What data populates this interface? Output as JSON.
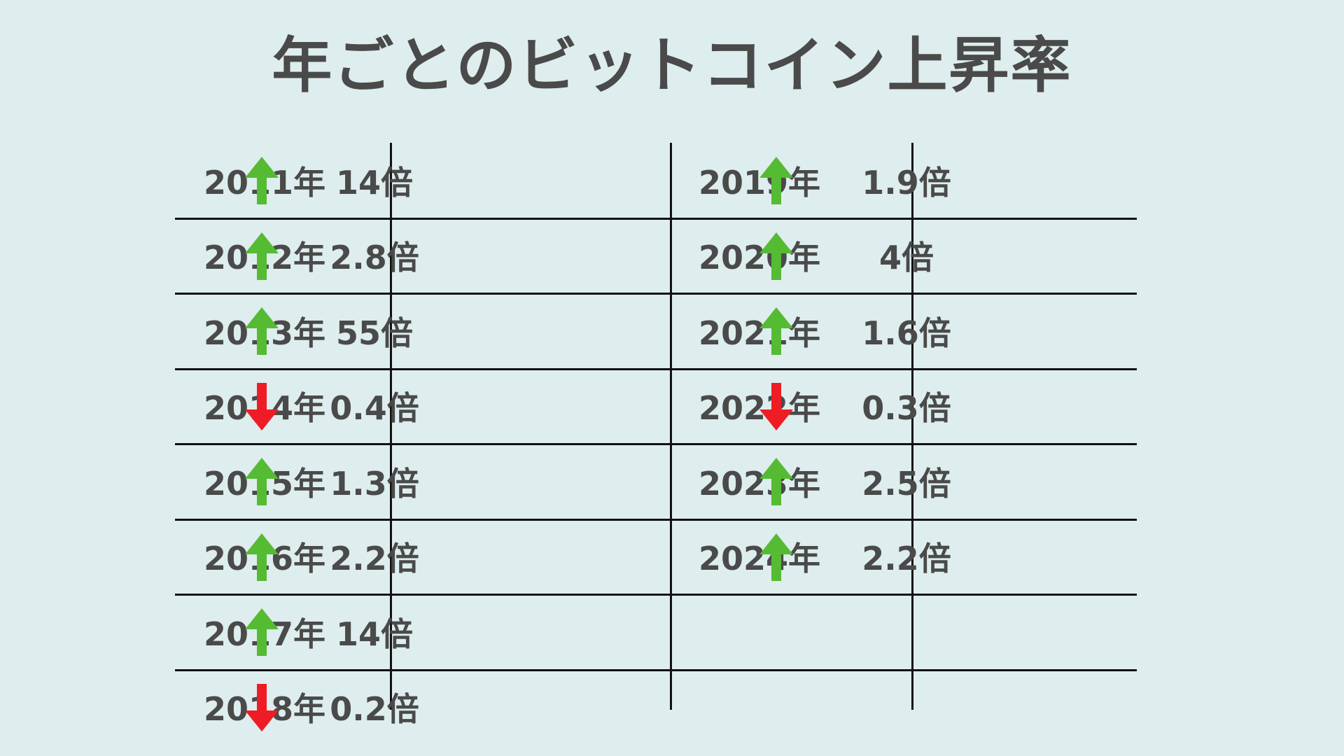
{
  "title": "年ごとのビットコイン上昇率",
  "colors": {
    "up": "#55bb33",
    "down": "#ee1c25",
    "text": "#4a4a4a",
    "background": "#deeded",
    "line": "#111111"
  },
  "left_rows": [
    {
      "year": "2011年",
      "direction": "up",
      "ratio": "14倍"
    },
    {
      "year": "2012年",
      "direction": "up",
      "ratio": "2.8倍"
    },
    {
      "year": "2013年",
      "direction": "up",
      "ratio": "55倍"
    },
    {
      "year": "2014年",
      "direction": "down",
      "ratio": "0.4倍"
    },
    {
      "year": "2015年",
      "direction": "up",
      "ratio": "1.3倍"
    },
    {
      "year": "2016年",
      "direction": "up",
      "ratio": "2.2倍"
    },
    {
      "year": "2017年",
      "direction": "up",
      "ratio": "14倍"
    },
    {
      "year": "2018年",
      "direction": "down",
      "ratio": "0.2倍"
    }
  ],
  "right_rows": [
    {
      "year": "2019年",
      "direction": "up",
      "ratio": "1.9倍"
    },
    {
      "year": "2020年",
      "direction": "up",
      "ratio": "4倍"
    },
    {
      "year": "2021年",
      "direction": "up",
      "ratio": "1.6倍"
    },
    {
      "year": "2022年",
      "direction": "down",
      "ratio": "0.3倍"
    },
    {
      "year": "2023年",
      "direction": "up",
      "ratio": "2.5倍"
    },
    {
      "year": "2024年",
      "direction": "up",
      "ratio": "2.2倍"
    },
    {
      "year": "",
      "direction": "",
      "ratio": ""
    },
    {
      "year": "",
      "direction": "",
      "ratio": ""
    }
  ]
}
